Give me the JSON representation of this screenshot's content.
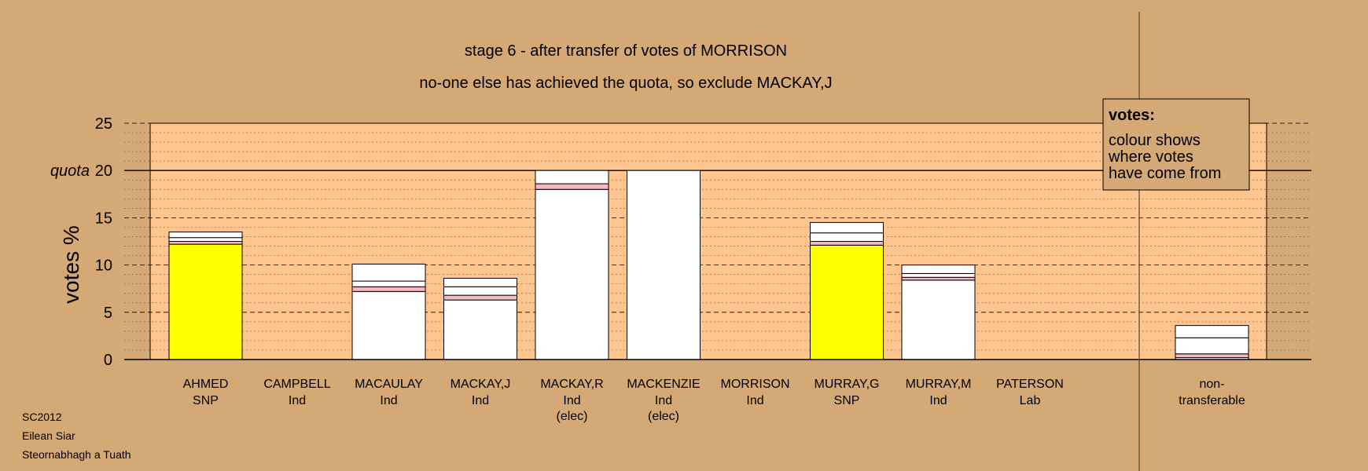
{
  "chart_data": {
    "type": "bar",
    "title": "stage 6 - after transfer of votes of MORRISON",
    "subtitle": "no-one else has achieved the quota, so exclude MACKAY,J",
    "ylabel": "votes %",
    "ylim": [
      0,
      25
    ],
    "yticks": [
      0,
      5,
      10,
      15,
      20,
      25
    ],
    "quota": 20,
    "quota_label": "quota",
    "grid": true,
    "legend": {
      "position": "top-right",
      "title": "votes:",
      "lines": [
        "colour shows",
        "where votes",
        "have come from"
      ]
    },
    "colors": {
      "background": "#d5a976",
      "plot_area": "#ffc58f",
      "snp": "#ffff00",
      "transfer": "#ffffff",
      "pink": "#f5b8c0"
    },
    "candidates": [
      {
        "name": "AHMED",
        "party": "SNP",
        "note": "",
        "segments": [
          {
            "value": 12.2,
            "color": "#ffff00"
          },
          {
            "value": 0.3,
            "color": "#f5b8c0"
          },
          {
            "value": 0.4,
            "color": "#ffffff"
          },
          {
            "value": 0.6,
            "color": "#ffffff"
          }
        ]
      },
      {
        "name": "CAMPBELL",
        "party": "Ind",
        "note": "",
        "segments": []
      },
      {
        "name": "MACAULAY",
        "party": "Ind",
        "note": "",
        "segments": [
          {
            "value": 7.2,
            "color": "#ffffff"
          },
          {
            "value": 0.5,
            "color": "#f5b8c0"
          },
          {
            "value": 0.6,
            "color": "#ffffff"
          },
          {
            "value": 1.8,
            "color": "#ffffff"
          }
        ]
      },
      {
        "name": "MACKAY,J",
        "party": "Ind",
        "note": "",
        "segments": [
          {
            "value": 6.3,
            "color": "#ffffff"
          },
          {
            "value": 0.5,
            "color": "#f5b8c0"
          },
          {
            "value": 0.9,
            "color": "#ffffff"
          },
          {
            "value": 0.9,
            "color": "#ffffff"
          }
        ]
      },
      {
        "name": "MACKAY,R",
        "party": "Ind",
        "note": "(elec)",
        "segments": [
          {
            "value": 18.0,
            "color": "#ffffff"
          },
          {
            "value": 0.6,
            "color": "#f5b8c0"
          },
          {
            "value": 1.4,
            "color": "#ffffff"
          }
        ]
      },
      {
        "name": "MACKENZIE",
        "party": "Ind",
        "note": "(elec)",
        "segments": [
          {
            "value": 20.0,
            "color": "#ffffff"
          }
        ]
      },
      {
        "name": "MORRISON",
        "party": "Ind",
        "note": "",
        "segments": []
      },
      {
        "name": "MURRAY,G",
        "party": "SNP",
        "note": "",
        "segments": [
          {
            "value": 12.1,
            "color": "#ffff00"
          },
          {
            "value": 0.4,
            "color": "#f5b8c0"
          },
          {
            "value": 0.9,
            "color": "#ffffff"
          },
          {
            "value": 1.1,
            "color": "#ffffff"
          }
        ]
      },
      {
        "name": "MURRAY,M",
        "party": "Ind",
        "note": "",
        "segments": [
          {
            "value": 8.4,
            "color": "#ffffff"
          },
          {
            "value": 0.3,
            "color": "#f5b8c0"
          },
          {
            "value": 0.4,
            "color": "#ffffff"
          },
          {
            "value": 0.9,
            "color": "#ffffff"
          }
        ]
      },
      {
        "name": "PATERSON",
        "party": "Lab",
        "note": "",
        "segments": []
      }
    ],
    "nontransferable": {
      "line1": "non-",
      "line2": "transferable",
      "segments": [
        {
          "value": 0.2,
          "color": "#ffffff"
        },
        {
          "value": 0.4,
          "color": "#f5b8c0"
        },
        {
          "value": 1.7,
          "color": "#ffffff"
        },
        {
          "value": 1.3,
          "color": "#ffffff"
        }
      ]
    }
  },
  "footer": {
    "line1": "SC2012",
    "line2": "Eilean Siar",
    "line3": "Steornabhagh a Tuath"
  }
}
